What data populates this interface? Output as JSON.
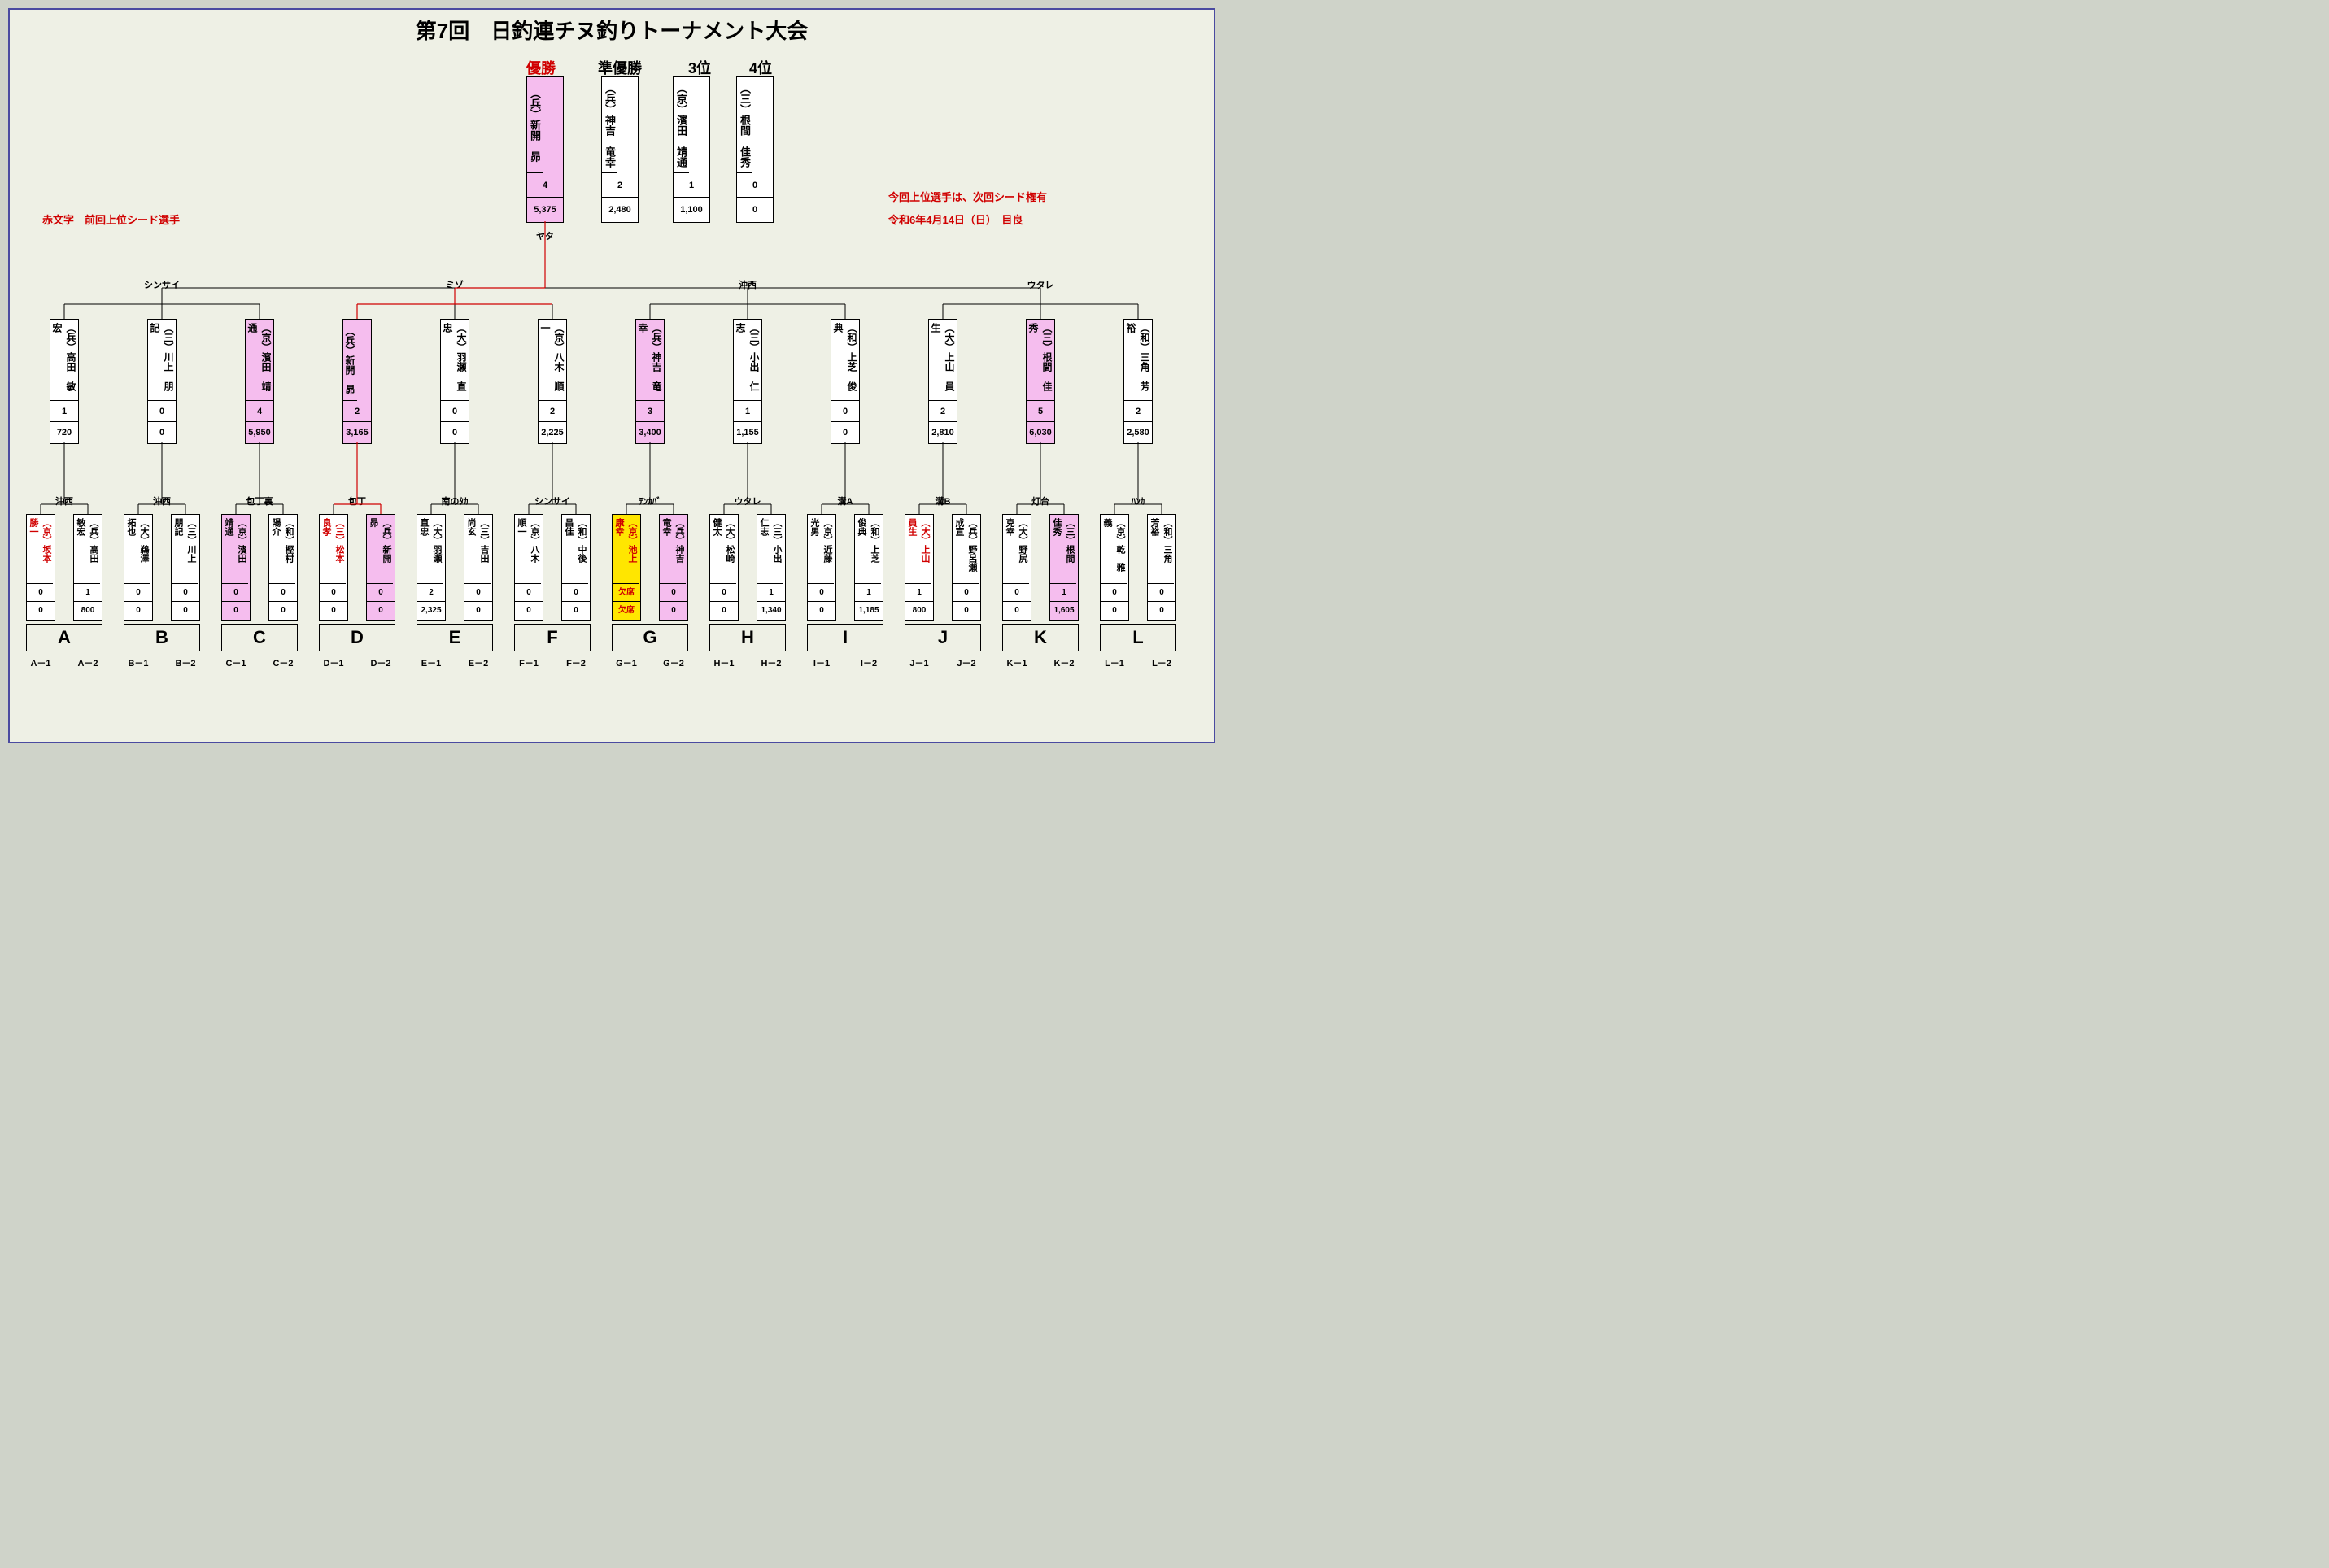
{
  "title": "第7回　日釣連チヌ釣りトーナメント大会",
  "ranks": [
    "優勝",
    "準優勝",
    "3位",
    "4位"
  ],
  "notes": {
    "seed_legend": "赤文字　前回上位シード選手",
    "next_seed": "今回上位選手は、次回シード権有",
    "date_place": "令和6年4月14日（日）　目良"
  },
  "final_loc": "ヤタ",
  "semi_locs": [
    "シンサイ",
    "ミゾ",
    "沖西",
    "ウタレ"
  ],
  "pair_locs": [
    "沖西",
    "沖西",
    "包丁裏",
    "包丁",
    "南のﾀｶ",
    "シンサイ",
    "ﾃﾝｶﾊﾞ",
    "ウタレ",
    "溝A",
    "溝B",
    "灯台",
    "ﾊﾝｶ"
  ],
  "finals": [
    {
      "name": "（兵）新開　昴",
      "v1": "4",
      "v2": "5,375",
      "bg": "pink"
    },
    {
      "name": "（兵）神吉　竜幸",
      "v1": "2",
      "v2": "2,480",
      "bg": ""
    },
    {
      "name": "（京）濱田　靖通",
      "v1": "1",
      "v2": "1,100",
      "bg": ""
    },
    {
      "name": "（三）根間　佳秀",
      "v1": "0",
      "v2": "0",
      "bg": ""
    }
  ],
  "mids": [
    {
      "name": "（兵）高田　敏宏",
      "v1": "1",
      "v2": "720",
      "bg": ""
    },
    {
      "name": "（三）川上　朋記",
      "v1": "0",
      "v2": "0",
      "bg": ""
    },
    {
      "name": "（京）濱田　靖通",
      "v1": "4",
      "v2": "5,950",
      "bg": "pink"
    },
    {
      "name": "（兵）新開　昴",
      "v1": "2",
      "v2": "3,165",
      "bg": "pink"
    },
    {
      "name": "（大）羽瀬　直忠",
      "v1": "0",
      "v2": "0",
      "bg": ""
    },
    {
      "name": "（京）八木　順一",
      "v1": "2",
      "v2": "2,225",
      "bg": ""
    },
    {
      "name": "（兵）神吉　竜幸",
      "v1": "3",
      "v2": "3,400",
      "bg": "pink"
    },
    {
      "name": "（三）小出　仁志",
      "v1": "1",
      "v2": "1,155",
      "bg": ""
    },
    {
      "name": "（和）上芝　俊典",
      "v1": "0",
      "v2": "0",
      "bg": ""
    },
    {
      "name": "（大）上山　員生",
      "v1": "2",
      "v2": "2,810",
      "bg": ""
    },
    {
      "name": "（三）根間　佳秀",
      "v1": "5",
      "v2": "6,030",
      "bg": "pink"
    },
    {
      "name": "（和）三角　芳裕",
      "v1": "2",
      "v2": "2,580",
      "bg": ""
    }
  ],
  "bottoms": [
    {
      "name": "（京）坂本　勝一",
      "v1": "0",
      "v2": "0",
      "bg": "",
      "red": true
    },
    {
      "name": "（兵）高田　敏宏",
      "v1": "1",
      "v2": "800",
      "bg": ""
    },
    {
      "name": "（大）鵜澤　拓也",
      "v1": "0",
      "v2": "0",
      "bg": ""
    },
    {
      "name": "（三）川上　朋記",
      "v1": "0",
      "v2": "0",
      "bg": ""
    },
    {
      "name": "（京）濱田　靖通",
      "v1": "0",
      "v2": "0",
      "bg": "pink"
    },
    {
      "name": "（和）樫村　陽介",
      "v1": "0",
      "v2": "0",
      "bg": ""
    },
    {
      "name": "（三）松本　良孝",
      "v1": "0",
      "v2": "0",
      "bg": "",
      "red": true
    },
    {
      "name": "（兵）新開　昴",
      "v1": "0",
      "v2": "0",
      "bg": "pink"
    },
    {
      "name": "（大）羽瀬　直忠",
      "v1": "2",
      "v2": "2,325",
      "bg": ""
    },
    {
      "name": "（三）吉田　尚玄",
      "v1": "0",
      "v2": "0",
      "bg": ""
    },
    {
      "name": "（京）八木　順一",
      "v1": "0",
      "v2": "0",
      "bg": ""
    },
    {
      "name": "（和）中後　昌佳",
      "v1": "0",
      "v2": "0",
      "bg": ""
    },
    {
      "name": "（京）池上　康幸",
      "v1": "欠席",
      "v2": "欠席",
      "bg": "yellow",
      "red": true,
      "numred": true
    },
    {
      "name": "（兵）神吉　竜幸",
      "v1": "0",
      "v2": "0",
      "bg": "pink"
    },
    {
      "name": "（大）松崎　健太",
      "v1": "0",
      "v2": "0",
      "bg": ""
    },
    {
      "name": "（三）小出　仁志",
      "v1": "1",
      "v2": "1,340",
      "bg": ""
    },
    {
      "name": "（京）近藤　光男",
      "v1": "0",
      "v2": "0",
      "bg": ""
    },
    {
      "name": "（和）上芝　俊典",
      "v1": "1",
      "v2": "1,185",
      "bg": ""
    },
    {
      "name": "（大）上山　員生",
      "v1": "1",
      "v2": "800",
      "bg": "",
      "red": true
    },
    {
      "name": "（兵）野呂瀬　成宣",
      "v1": "0",
      "v2": "0",
      "bg": ""
    },
    {
      "name": "（大）野尻　克幸",
      "v1": "0",
      "v2": "0",
      "bg": ""
    },
    {
      "name": "（三）根間　佳秀",
      "v1": "1",
      "v2": "1,605",
      "bg": "pink"
    },
    {
      "name": "（京）乾　雅義",
      "v1": "0",
      "v2": "0",
      "bg": ""
    },
    {
      "name": "（和）三角　芳裕",
      "v1": "0",
      "v2": "0",
      "bg": ""
    }
  ],
  "groups": [
    "A",
    "B",
    "C",
    "D",
    "E",
    "F",
    "G",
    "H",
    "I",
    "J",
    "K",
    "L"
  ],
  "colors": {
    "bg": "#eef0e5",
    "pink": "#f5bdee",
    "yellow": "#ffe600",
    "red": "#d00000"
  }
}
